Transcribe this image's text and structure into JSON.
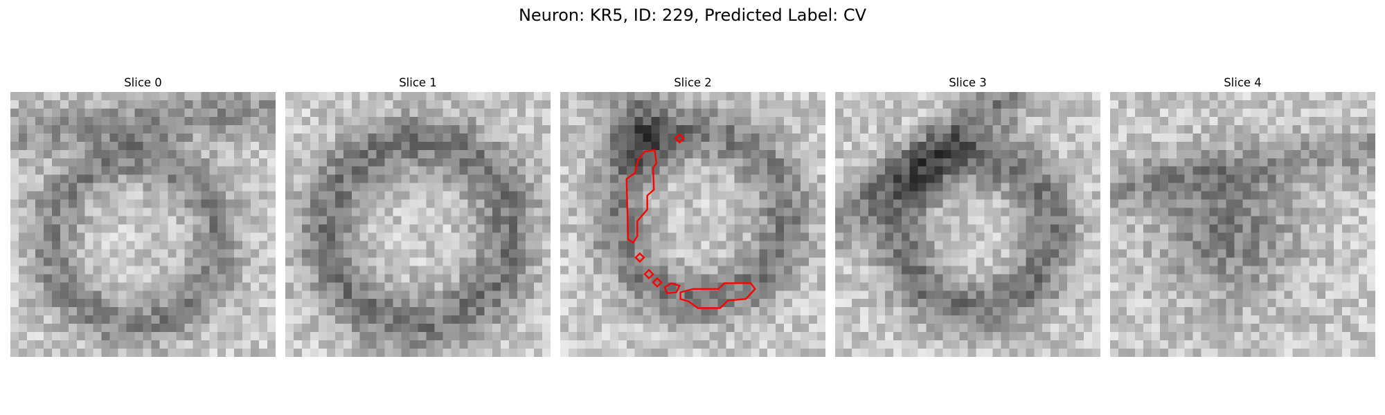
{
  "figure": {
    "title": "Neuron: KR5, ID: 229, Predicted Label: CV"
  },
  "panels": [
    {
      "title": "Slice 0",
      "has_contour": false,
      "seed": 11,
      "contour_color": "#ff0000"
    },
    {
      "title": "Slice 1",
      "has_contour": false,
      "seed": 23,
      "contour_color": "#ff0000"
    },
    {
      "title": "Slice 2",
      "has_contour": true,
      "seed": 37,
      "contour_color": "#ff0000"
    },
    {
      "title": "Slice 3",
      "has_contour": false,
      "seed": 51,
      "contour_color": "#ff0000"
    },
    {
      "title": "Slice 4",
      "has_contour": false,
      "seed": 67,
      "contour_color": "#ff0000"
    }
  ]
}
